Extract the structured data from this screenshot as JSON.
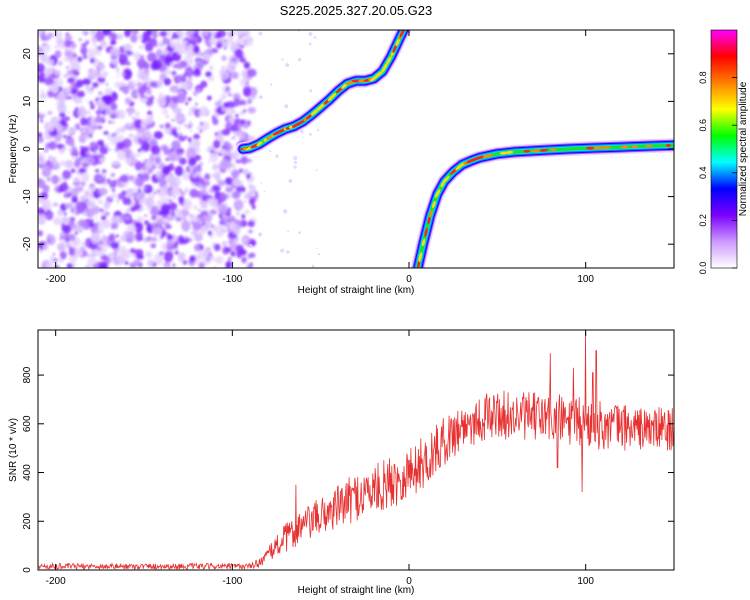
{
  "title": "S225.2025.327.20.05.G23",
  "chart_data": [
    {
      "type": "heatmap",
      "panel": "top",
      "title": "S225.2025.327.20.05.G23",
      "xlabel": "Height of straight line (km)",
      "ylabel": "Frequency (Hz)",
      "xlim": [
        -210,
        150
      ],
      "ylim": [
        -25,
        25
      ],
      "xticks": [
        -200,
        -100,
        0,
        100
      ],
      "xtick_labels": [
        "-200",
        "-100",
        "0",
        "100"
      ],
      "yticks": [
        20,
        10,
        0,
        -10,
        -20
      ],
      "ytick_labels": [
        "20",
        "10",
        "0",
        "-10",
        "-20"
      ],
      "colorbar": {
        "label": "Normalized spectral amplitude",
        "range": [
          0,
          1
        ],
        "ticks": [
          0.0,
          0.2,
          0.4,
          0.6,
          0.8
        ],
        "tick_labels": [
          "0.0",
          "0.2",
          "0.4",
          "0.6",
          "0.8"
        ],
        "colors": [
          "#ffffff",
          "#cc99ff",
          "#7b00ff",
          "#0000ff",
          "#00ffff",
          "#00ff00",
          "#ffff00",
          "#ff8000",
          "#ff0000",
          "#ff00ff"
        ]
      },
      "noise_region_x": [
        -210,
        -90
      ],
      "traces": [
        {
          "name": "branch-1",
          "points": [
            [
              -94,
              0
            ],
            [
              -90,
              0.2
            ],
            [
              -85,
              1
            ],
            [
              -80,
              2.2
            ],
            [
              -75,
              3.3
            ],
            [
              -70,
              4.2
            ],
            [
              -65,
              4.8
            ],
            [
              -60,
              5.8
            ],
            [
              -55,
              7.2
            ],
            [
              -50,
              8.8
            ],
            [
              -45,
              10.4
            ],
            [
              -40,
              12.2
            ],
            [
              -35,
              13.7
            ],
            [
              -30,
              14.3
            ],
            [
              -25,
              14.3
            ],
            [
              -20,
              14.8
            ],
            [
              -15,
              16.3
            ],
            [
              -10,
              19.5
            ],
            [
              -5,
              23.5
            ],
            [
              -3,
              25
            ]
          ]
        },
        {
          "name": "branch-2",
          "points": [
            [
              5,
              -25
            ],
            [
              8,
              -20
            ],
            [
              12,
              -14
            ],
            [
              16,
              -9.5
            ],
            [
              20,
              -6.8
            ],
            [
              25,
              -4.8
            ],
            [
              30,
              -3.3
            ],
            [
              35,
              -2.5
            ],
            [
              40,
              -1.8
            ],
            [
              50,
              -1.0
            ],
            [
              60,
              -0.6
            ],
            [
              75,
              -0.3
            ],
            [
              90,
              0.0
            ],
            [
              105,
              0.2
            ],
            [
              120,
              0.4
            ],
            [
              135,
              0.6
            ],
            [
              150,
              0.8
            ]
          ]
        }
      ]
    },
    {
      "type": "line",
      "panel": "bottom",
      "xlabel": "Height of straight line (km)",
      "ylabel": "SNR (10 * v/v)",
      "xlim": [
        -210,
        150
      ],
      "ylim": [
        0,
        985
      ],
      "xticks": [
        -200,
        -100,
        0,
        100
      ],
      "xtick_labels": [
        "-200",
        "-100",
        "0",
        "100"
      ],
      "yticks": [
        0,
        200,
        400,
        600,
        800
      ],
      "ytick_labels": [
        "0",
        "200",
        "400",
        "600",
        "800"
      ],
      "series": [
        {
          "name": "SNR",
          "color": "#e83030",
          "envelope": {
            "x": [
              -210,
              -90,
              -85,
              -80,
              -75,
              -70,
              -60,
              -50,
              -40,
              -30,
              -20,
              -10,
              0,
              10,
              20,
              30,
              40,
              50,
              60,
              70,
              80,
              90,
              100,
              110,
              120,
              130,
              140,
              150
            ],
            "mean": [
              15,
              15,
              30,
              60,
              100,
              130,
              180,
              220,
              260,
              300,
              330,
              360,
              400,
              450,
              530,
              590,
              620,
              640,
              630,
              630,
              620,
              610,
              600,
              590,
              590,
              580,
              580,
              580
            ],
            "noise": [
              12,
              12,
              20,
              30,
              50,
              60,
              70,
              80,
              90,
              100,
              100,
              110,
              110,
              110,
              100,
              100,
              100,
              100,
              100,
              100,
              110,
              110,
              110,
              100,
              100,
              90,
              90,
              90
            ]
          },
          "spikes": [
            [
              -64,
              350
            ],
            [
              -62,
              230
            ],
            [
              80,
              890
            ],
            [
              93,
              830
            ],
            [
              100,
              980
            ],
            [
              104,
              810
            ],
            [
              106,
              900
            ],
            [
              98,
              320
            ],
            [
              84,
              420
            ]
          ]
        }
      ]
    }
  ]
}
